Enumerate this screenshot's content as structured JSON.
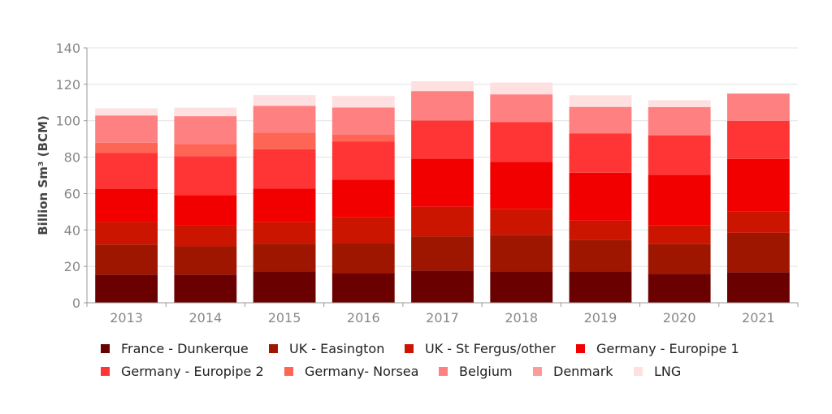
{
  "chart_data": {
    "type": "bar",
    "stacked": true,
    "ylabel": "Billion Sm³ (BCM)",
    "ylim": [
      0,
      140
    ],
    "yticks": [
      0,
      20,
      40,
      60,
      80,
      100,
      120,
      140
    ],
    "grid": true,
    "legend_position": "bottom",
    "categories": [
      "2013",
      "2014",
      "2015",
      "2016",
      "2017",
      "2018",
      "2019",
      "2020",
      "2021"
    ],
    "series": [
      {
        "name": "France - Dunkerque",
        "color": "#6b0000",
        "values": [
          15.5,
          15.5,
          17.2,
          16.3,
          17.7,
          17.2,
          17.2,
          15.8,
          16.8
        ]
      },
      {
        "name": "UK - Easington",
        "color": "#9e1600",
        "values": [
          16.5,
          15.5,
          15.3,
          16.5,
          18.8,
          20.1,
          17.3,
          16.6,
          21.6
        ]
      },
      {
        "name": "UK - St Fergus/other",
        "color": "#cc1500",
        "values": [
          12.4,
          11.4,
          11.7,
          14.3,
          16.2,
          14.3,
          10.6,
          10.1,
          11.6
        ]
      },
      {
        "name": "Germany - Europipe 1",
        "color": "#f20000",
        "values": [
          18.2,
          16.8,
          18.6,
          20.6,
          26.4,
          25.8,
          26.3,
          27.7,
          29.0
        ]
      },
      {
        "name": "Germany - Europipe 2",
        "color": "#ff3535",
        "values": [
          19.8,
          21.4,
          21.5,
          20.8,
          21.1,
          21.8,
          21.7,
          21.8,
          20.9
        ]
      },
      {
        "name": "Germany- Norsea",
        "color": "#ff6555",
        "values": [
          5.5,
          6.7,
          9.2,
          3.8,
          0,
          0,
          0,
          0,
          0
        ]
      },
      {
        "name": "Belgium",
        "color": "#ff8080",
        "values": [
          15.0,
          15.2,
          14.7,
          15.0,
          16.1,
          15.3,
          14.5,
          15.5,
          15.0
        ]
      },
      {
        "name": "Denmark",
        "color": "#ff9a9a",
        "values": [
          0,
          0,
          0,
          0,
          0,
          0,
          0,
          0,
          0
        ]
      },
      {
        "name": "LNG",
        "color": "#ffe0e0",
        "values": [
          3.9,
          4.7,
          5.9,
          6.3,
          5.4,
          6.5,
          6.4,
          3.8,
          0
        ]
      }
    ]
  }
}
